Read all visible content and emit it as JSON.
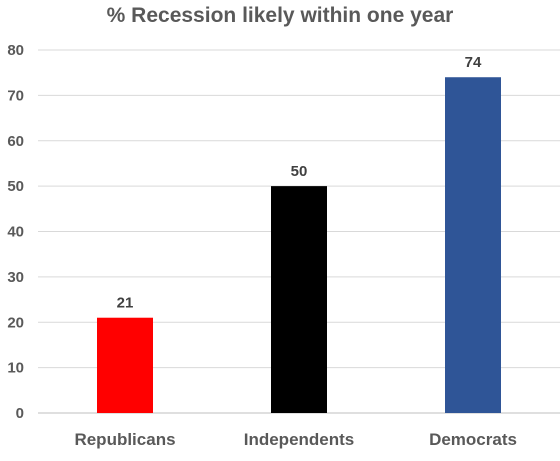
{
  "chart_data": {
    "type": "bar",
    "title": "% Recession likely within one year",
    "categories": [
      "Republicans",
      "Independents",
      "Democrats"
    ],
    "values": [
      21,
      50,
      74
    ],
    "colors": [
      "#ff0000",
      "#000000",
      "#2f5597"
    ],
    "ylim": [
      0,
      80
    ],
    "yticks": [
      "0",
      "10",
      "20",
      "30",
      "40",
      "50",
      "60",
      "70",
      "80"
    ],
    "grid": true,
    "legend": "none",
    "xlabel": "",
    "ylabel": ""
  }
}
